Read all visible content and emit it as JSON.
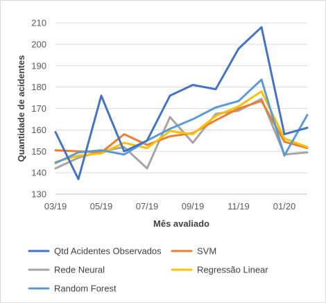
{
  "chart_data": {
    "type": "line",
    "xlabel": "Mês avaliado",
    "ylabel": "Quantidade de acidentes",
    "ylim": [
      130,
      210
    ],
    "yticks": [
      130,
      140,
      150,
      160,
      170,
      180,
      190,
      200,
      210
    ],
    "x": [
      "03/19",
      "04/19",
      "05/19",
      "06/19",
      "07/19",
      "08/19",
      "09/19",
      "10/19",
      "11/19",
      "12/19",
      "01/20",
      "02/20"
    ],
    "x_tick_labels": [
      "03/19",
      "05/19",
      "07/19",
      "09/19",
      "11/19",
      "01/20"
    ],
    "grid": "horizontal",
    "legend_position": "bottom",
    "series": [
      {
        "name": "Qtd Acidentes Observados",
        "color": "#4472c4",
        "values": [
          159,
          137,
          176,
          150,
          155,
          176,
          181,
          179,
          198,
          208,
          158,
          161
        ]
      },
      {
        "name": "SVM",
        "color": "#ed7d31",
        "values": [
          150.5,
          150,
          149.5,
          158,
          153,
          157,
          158.5,
          164.5,
          170,
          173.5,
          154.5,
          151.5
        ]
      },
      {
        "name": "Rede Neural",
        "color": "#a5a5a5",
        "values": [
          142,
          147,
          150,
          152,
          142,
          166,
          154,
          167.5,
          169,
          174.5,
          148.5,
          149.5
        ]
      },
      {
        "name": "Regressão Linear",
        "color": "#ffc000",
        "values": [
          145,
          148,
          149,
          154,
          151.5,
          159.5,
          158,
          166.5,
          171,
          178,
          156,
          152
        ]
      },
      {
        "name": "Random Forest",
        "color": "#5b9bd5",
        "values": [
          144.5,
          149.5,
          150.5,
          148.5,
          155,
          160.5,
          165,
          170.5,
          173.5,
          183.5,
          148,
          167
        ]
      }
    ]
  }
}
